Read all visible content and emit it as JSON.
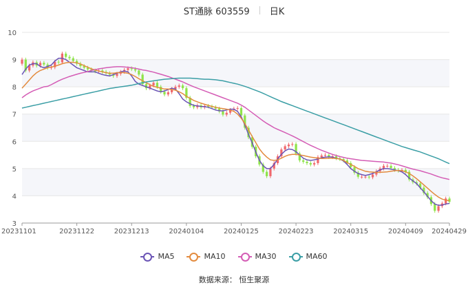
{
  "header": {
    "stock_label": "ST通脉 603559",
    "period_label": "日K"
  },
  "footer": {
    "source": "数据来源：  恒生聚源"
  },
  "colors": {
    "up": "#f0686d",
    "down": "#8fe34a",
    "grid": "#e6e6e6",
    "band": "#f5f6fa"
  },
  "chart_data": {
    "type": "line",
    "chart_kind": "candlestick-with-moving-averages",
    "ylim": [
      3,
      10
    ],
    "yticks": [
      "3",
      "4",
      "5",
      "6",
      "7",
      "8",
      "9",
      "10"
    ],
    "x_tick_labels": [
      "20231101",
      "20231122",
      "20231213",
      "20240104",
      "20240125",
      "20240223",
      "20240315",
      "20240409",
      "20240429"
    ],
    "trading_days": 118,
    "x_tick_positions": [
      0,
      15,
      30,
      45,
      60,
      75,
      90,
      105,
      117
    ],
    "closes": [
      9.0,
      8.6,
      8.78,
      8.9,
      8.78,
      8.88,
      8.82,
      8.7,
      8.72,
      8.92,
      8.9,
      9.22,
      9.1,
      9.05,
      8.95,
      8.85,
      8.76,
      8.7,
      8.64,
      8.6,
      8.57,
      8.6,
      8.55,
      8.5,
      8.45,
      8.4,
      8.48,
      8.55,
      8.62,
      8.68,
      8.65,
      8.6,
      8.45,
      8.1,
      7.95,
      8.05,
      8.15,
      8.0,
      7.82,
      7.72,
      7.8,
      7.92,
      8.0,
      8.05,
      7.95,
      7.6,
      7.3,
      7.25,
      7.32,
      7.25,
      7.3,
      7.28,
      7.25,
      7.2,
      7.1,
      6.98,
      7.05,
      7.15,
      7.2,
      7.22,
      6.95,
      6.5,
      6.15,
      5.8,
      5.45,
      5.15,
      4.88,
      4.72,
      5.0,
      5.2,
      5.45,
      5.7,
      5.82,
      5.88,
      5.9,
      5.55,
      5.3,
      5.25,
      5.2,
      5.15,
      5.2,
      5.42,
      5.48,
      5.5,
      5.42,
      5.45,
      5.38,
      5.35,
      5.3,
      5.2,
      5.05,
      4.85,
      4.7,
      4.7,
      4.7,
      4.68,
      4.78,
      4.9,
      5.0,
      5.1,
      5.1,
      5.02,
      4.95,
      4.92,
      4.95,
      4.88,
      4.6,
      4.5,
      4.45,
      4.3,
      4.1,
      3.95,
      3.7,
      3.45,
      3.62,
      3.72,
      3.9,
      3.78
    ],
    "series": [
      {
        "name": "MA5",
        "color": "#6a53b5",
        "values": [
          8.45,
          8.65,
          8.8,
          8.85,
          8.85,
          8.75,
          8.7,
          8.75,
          8.8,
          8.95,
          9.05,
          9.05,
          9.0,
          8.9,
          8.8,
          8.7,
          8.65,
          8.6,
          8.55,
          8.55,
          8.55,
          8.5,
          8.45,
          8.42,
          8.4,
          8.45,
          8.5,
          8.55,
          8.58,
          8.55,
          8.4,
          8.2,
          8.1,
          8.05,
          8.0,
          7.95,
          7.9,
          7.85,
          7.82,
          7.85,
          7.9,
          7.95,
          7.92,
          7.75,
          7.55,
          7.45,
          7.38,
          7.32,
          7.3,
          7.28,
          7.27,
          7.25,
          7.2,
          7.15,
          7.12,
          7.12,
          7.15,
          7.18,
          7.18,
          7.1,
          6.9,
          6.6,
          6.25,
          5.95,
          5.6,
          5.3,
          5.1,
          5.0,
          5.0,
          5.15,
          5.35,
          5.52,
          5.65,
          5.72,
          5.7,
          5.62,
          5.5,
          5.38,
          5.32,
          5.3,
          5.32,
          5.35,
          5.4,
          5.42,
          5.43,
          5.42,
          5.38,
          5.35,
          5.28,
          5.15,
          5.0,
          4.9,
          4.82,
          4.78,
          4.75,
          4.78,
          4.82,
          4.88,
          4.95,
          5.0,
          5.0,
          4.98,
          4.95,
          4.92,
          4.88,
          4.78,
          4.65,
          4.55,
          4.45,
          4.3,
          4.15,
          3.98,
          3.82,
          3.7,
          3.65,
          3.66,
          3.7,
          3.72
        ]
      },
      {
        "name": "MA10",
        "color": "#e38b3e",
        "values": [
          7.95,
          8.1,
          8.25,
          8.4,
          8.52,
          8.6,
          8.65,
          8.7,
          8.73,
          8.76,
          8.8,
          8.85,
          8.88,
          8.9,
          8.9,
          8.88,
          8.84,
          8.78,
          8.72,
          8.66,
          8.62,
          8.58,
          8.55,
          8.52,
          8.5,
          8.5,
          8.52,
          8.53,
          8.52,
          8.5,
          8.45,
          8.38,
          8.3,
          8.22,
          8.15,
          8.08,
          8.02,
          7.98,
          7.95,
          7.92,
          7.92,
          7.9,
          7.88,
          7.82,
          7.75,
          7.65,
          7.58,
          7.5,
          7.45,
          7.4,
          7.36,
          7.32,
          7.28,
          7.25,
          7.22,
          7.2,
          7.18,
          7.15,
          7.1,
          7.0,
          6.85,
          6.65,
          6.42,
          6.18,
          5.95,
          5.72,
          5.55,
          5.42,
          5.32,
          5.3,
          5.32,
          5.38,
          5.45,
          5.5,
          5.52,
          5.52,
          5.5,
          5.48,
          5.45,
          5.42,
          5.4,
          5.38,
          5.37,
          5.37,
          5.38,
          5.38,
          5.37,
          5.35,
          5.3,
          5.22,
          5.15,
          5.08,
          5.0,
          4.95,
          4.9,
          4.88,
          4.87,
          4.86,
          4.86,
          4.87,
          4.88,
          4.9,
          4.92,
          4.93,
          4.92,
          4.88,
          4.82,
          4.73,
          4.63,
          4.52,
          4.4,
          4.28,
          4.16,
          4.05,
          3.95,
          3.88,
          3.84,
          3.82
        ]
      },
      {
        "name": "MA30",
        "color": "#d45cb5",
        "values": [
          7.6,
          7.7,
          7.78,
          7.85,
          7.9,
          7.95,
          8.0,
          8.02,
          8.08,
          8.15,
          8.22,
          8.28,
          8.33,
          8.38,
          8.42,
          8.46,
          8.5,
          8.53,
          8.56,
          8.6,
          8.63,
          8.66,
          8.68,
          8.7,
          8.72,
          8.73,
          8.74,
          8.74,
          8.73,
          8.72,
          8.7,
          8.68,
          8.65,
          8.62,
          8.6,
          8.57,
          8.54,
          8.5,
          8.46,
          8.42,
          8.38,
          8.33,
          8.28,
          8.23,
          8.18,
          8.12,
          8.06,
          8.0,
          7.95,
          7.9,
          7.85,
          7.8,
          7.75,
          7.7,
          7.65,
          7.6,
          7.55,
          7.5,
          7.45,
          7.4,
          7.33,
          7.25,
          7.15,
          7.05,
          6.95,
          6.85,
          6.75,
          6.66,
          6.58,
          6.5,
          6.44,
          6.38,
          6.32,
          6.26,
          6.2,
          6.13,
          6.06,
          5.99,
          5.92,
          5.85,
          5.79,
          5.73,
          5.67,
          5.62,
          5.57,
          5.52,
          5.48,
          5.44,
          5.41,
          5.38,
          5.36,
          5.34,
          5.32,
          5.3,
          5.29,
          5.28,
          5.27,
          5.26,
          5.25,
          5.24,
          5.22,
          5.2,
          5.17,
          5.14,
          5.1,
          5.06,
          5.02,
          4.98,
          4.95,
          4.92,
          4.88,
          4.84,
          4.8,
          4.75,
          4.7,
          4.66,
          4.63,
          4.6
        ]
      },
      {
        "name": "MA60",
        "color": "#3a9ea5",
        "values": [
          7.22,
          7.25,
          7.28,
          7.31,
          7.34,
          7.37,
          7.4,
          7.43,
          7.46,
          7.49,
          7.52,
          7.55,
          7.58,
          7.61,
          7.64,
          7.67,
          7.7,
          7.73,
          7.76,
          7.79,
          7.82,
          7.85,
          7.88,
          7.91,
          7.94,
          7.96,
          7.98,
          8.0,
          8.02,
          8.04,
          8.06,
          8.09,
          8.12,
          8.15,
          8.18,
          8.2,
          8.22,
          8.24,
          8.26,
          8.28,
          8.29,
          8.3,
          8.31,
          8.32,
          8.32,
          8.32,
          8.32,
          8.31,
          8.3,
          8.29,
          8.28,
          8.28,
          8.27,
          8.26,
          8.24,
          8.22,
          8.19,
          8.16,
          8.13,
          8.1,
          8.06,
          8.02,
          7.97,
          7.92,
          7.87,
          7.82,
          7.76,
          7.7,
          7.64,
          7.58,
          7.52,
          7.46,
          7.41,
          7.36,
          7.31,
          7.26,
          7.21,
          7.16,
          7.11,
          7.06,
          7.01,
          6.96,
          6.91,
          6.86,
          6.81,
          6.76,
          6.71,
          6.66,
          6.61,
          6.56,
          6.51,
          6.46,
          6.41,
          6.36,
          6.31,
          6.26,
          6.21,
          6.16,
          6.11,
          6.06,
          6.01,
          5.96,
          5.91,
          5.86,
          5.81,
          5.77,
          5.73,
          5.69,
          5.65,
          5.61,
          5.56,
          5.51,
          5.46,
          5.41,
          5.36,
          5.3,
          5.24,
          5.18
        ]
      }
    ],
    "legend": [
      "MA5",
      "MA10",
      "MA30",
      "MA60"
    ],
    "legend_position": "bottom",
    "grid": true
  }
}
